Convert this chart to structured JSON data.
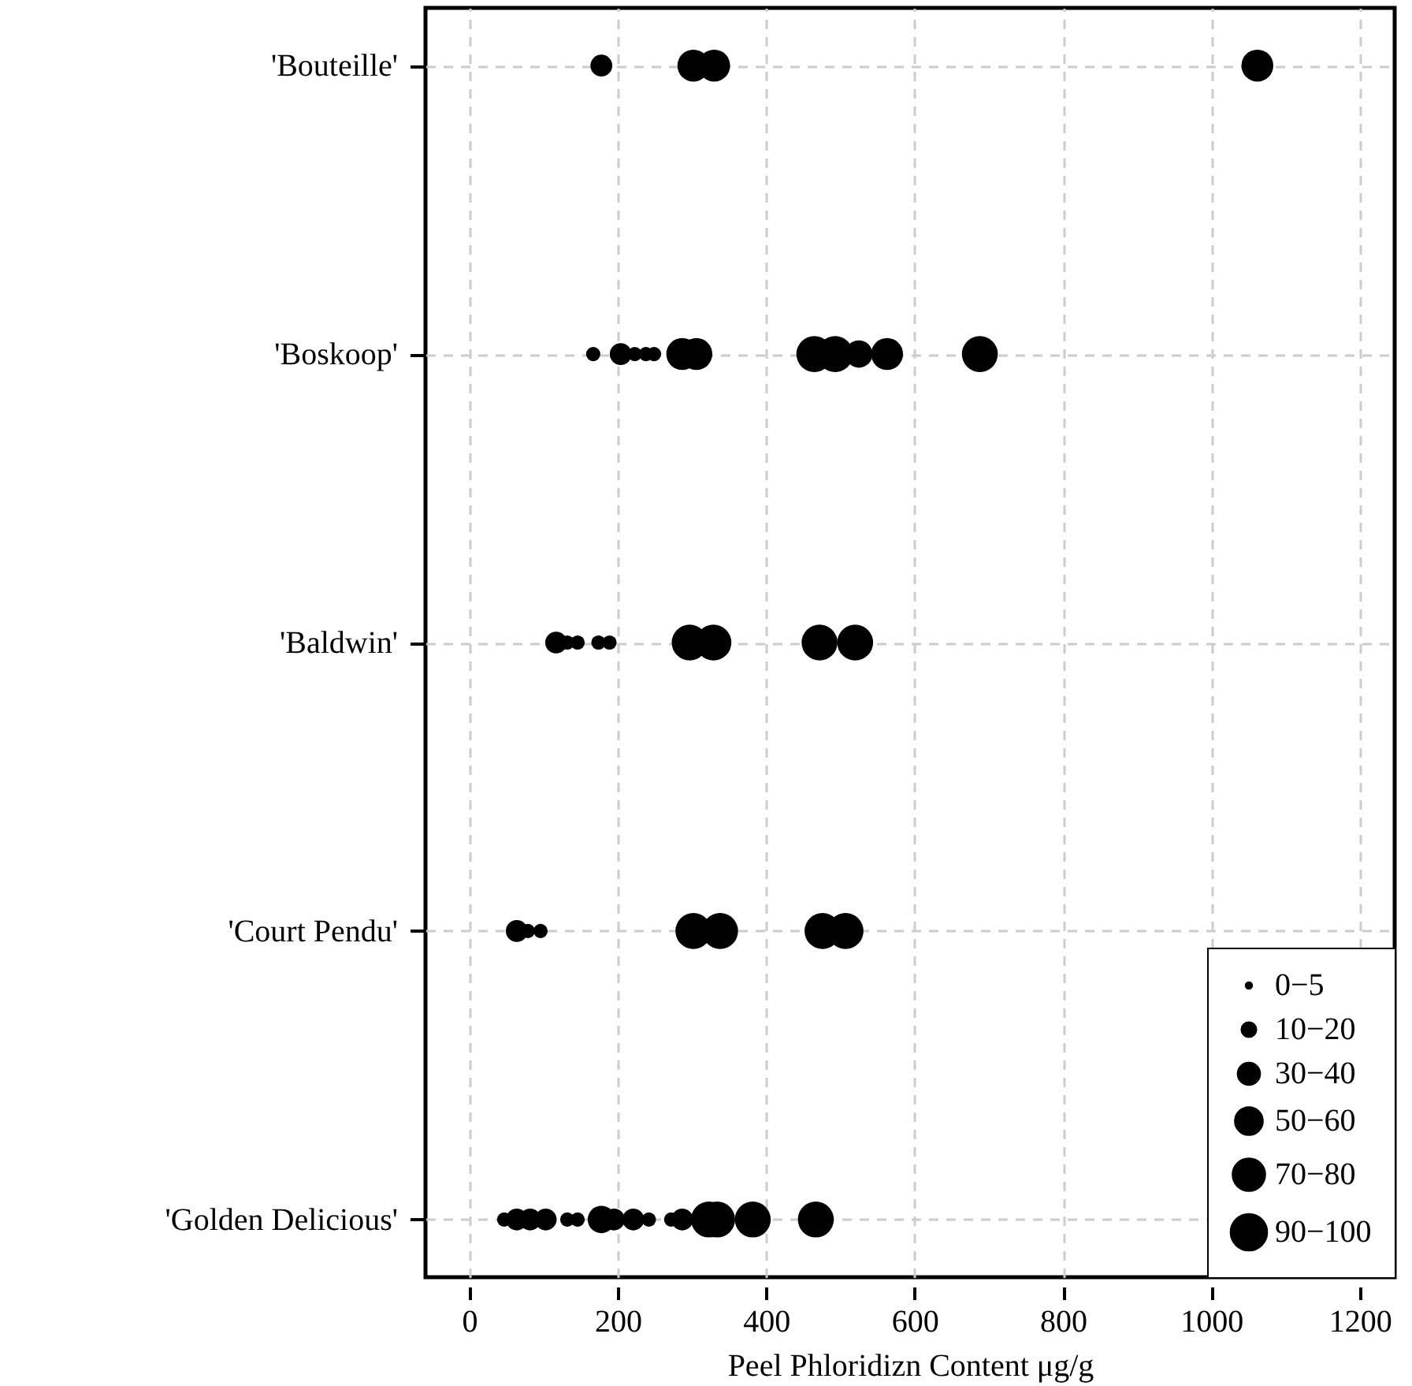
{
  "chart_data": {
    "type": "bubble",
    "orientation": "horizontal",
    "xlabel": "Peel Phloridizn Content μg/g",
    "categories": [
      "'Bouteille'",
      "'Boskoop'",
      "'Baldwin'",
      "'Court Pendu'",
      "'Golden Delicious'"
    ],
    "xlim": [
      -59,
      1247
    ],
    "xticks": [
      0,
      200,
      400,
      600,
      800,
      1000,
      1200
    ],
    "series": [
      {
        "color": "#000000",
        "values": [
          178,
          167,
          117,
          64,
          47
        ],
        "sizes": [
          35,
          15,
          35,
          35,
          15
        ]
      },
      {
        "color": "#000000",
        "values": [
          302,
          204,
          132,
          79,
          64
        ],
        "sizes": [
          75,
          35,
          15,
          15,
          35
        ]
      },
      {
        "color": "#000000",
        "values": [
          null,
          223,
          146,
          96,
          82
        ],
        "sizes": [
          null,
          15,
          15,
          15,
          35
        ]
      },
      {
        "color": "#000000",
        "values": [
          330,
          238,
          174,
          302,
          103
        ],
        "sizes": [
          75,
          15,
          15,
          95,
          35
        ]
      },
      {
        "color": "#000000",
        "values": [
          1062,
          249,
          189,
          338,
          132
        ],
        "sizes": [
          75,
          15,
          15,
          95,
          15
        ]
      },
      {
        "color": "#000000",
        "values": [
          null,
          287,
          297,
          476,
          146
        ],
        "sizes": [
          null,
          75,
          95,
          95,
          15
        ]
      },
      {
        "color": "#000000",
        "values": [
          null,
          306,
          329,
          507,
          178
        ],
        "sizes": [
          null,
          75,
          95,
          95,
          55
        ]
      },
      {
        "color": "#000000",
        "values": [
          null,
          465,
          472,
          null,
          195
        ],
        "sizes": [
          null,
          95,
          95,
          null,
          35
        ]
      },
      {
        "color": "#000000",
        "values": [
          null,
          493,
          520,
          null,
          221
        ],
        "sizes": [
          null,
          95,
          95,
          null,
          35
        ]
      },
      {
        "color": "#000000",
        "values": [
          null,
          525,
          null,
          null,
          242
        ],
        "sizes": [
          null,
          55,
          null,
          null,
          15
        ]
      },
      {
        "color": "#000000",
        "values": [
          null,
          563,
          null,
          null,
          272
        ],
        "sizes": [
          null,
          75,
          null,
          null,
          15
        ]
      },
      {
        "color": "#000000",
        "values": [
          null,
          688,
          null,
          null,
          287
        ],
        "sizes": [
          null,
          95,
          null,
          null,
          35
        ]
      },
      {
        "color": "#000000",
        "values": [
          null,
          null,
          null,
          null,
          323
        ],
        "sizes": [
          null,
          null,
          null,
          null,
          95
        ]
      },
      {
        "color": "#000000",
        "values": [
          null,
          null,
          null,
          null,
          334
        ],
        "sizes": [
          null,
          null,
          null,
          null,
          95
        ]
      },
      {
        "color": "#000000",
        "values": [
          null,
          null,
          null,
          null,
          382
        ],
        "sizes": [
          null,
          null,
          null,
          null,
          95
        ]
      },
      {
        "color": "#000000",
        "values": [
          null,
          null,
          null,
          null,
          467
        ],
        "sizes": [
          null,
          null,
          null,
          null,
          95
        ]
      }
    ],
    "size_legend": [
      {
        "value": 2.5,
        "label": "0−5"
      },
      {
        "value": 15,
        "label": "10−20"
      },
      {
        "value": 35,
        "label": "30−40"
      },
      {
        "value": 55,
        "label": "50−60"
      },
      {
        "value": 75,
        "label": "70−80"
      },
      {
        "value": 95,
        "label": "90−100"
      }
    ],
    "grid": true,
    "marker": "circle"
  }
}
